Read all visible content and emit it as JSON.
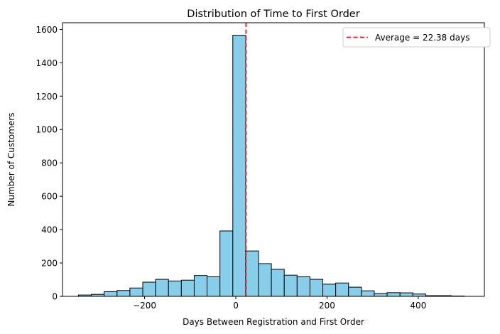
{
  "chart_data": {
    "type": "bar",
    "title": "Distribution of Time to First Order",
    "xlabel": "Days Between Registration and First Order",
    "ylabel": "Number of Customers",
    "xlim": [
      -380,
      545
    ],
    "ylim": [
      0,
      1640
    ],
    "xticks": [
      -200,
      0,
      200,
      400
    ],
    "yticks": [
      0,
      200,
      400,
      600,
      800,
      1000,
      1200,
      1400,
      1600
    ],
    "bin_edges": [
      -345,
      -316.8,
      -288.6,
      -260.4,
      -232.2,
      -204,
      -175.8,
      -147.6,
      -119.4,
      -91.2,
      -63,
      -34.8,
      -6.6,
      21.6,
      49.8,
      78,
      106.2,
      134.4,
      162.6,
      190.8,
      219,
      247.2,
      275.4,
      303.6,
      331.8,
      360,
      388.2,
      416.4,
      444.6,
      472.8,
      501
    ],
    "counts": [
      8,
      12,
      28,
      35,
      50,
      85,
      102,
      92,
      97,
      125,
      117,
      392,
      1565,
      272,
      196,
      162,
      127,
      117,
      102,
      73,
      80,
      55,
      33,
      17,
      22,
      21,
      14,
      4,
      4,
      2
    ],
    "bar_color": "#87ceeb",
    "edge_color": "#000000",
    "average_line": {
      "x": 22.38,
      "color": "#e41a1c",
      "label": "Average = 22.38 days"
    },
    "legend": "top-right",
    "grid": false
  }
}
